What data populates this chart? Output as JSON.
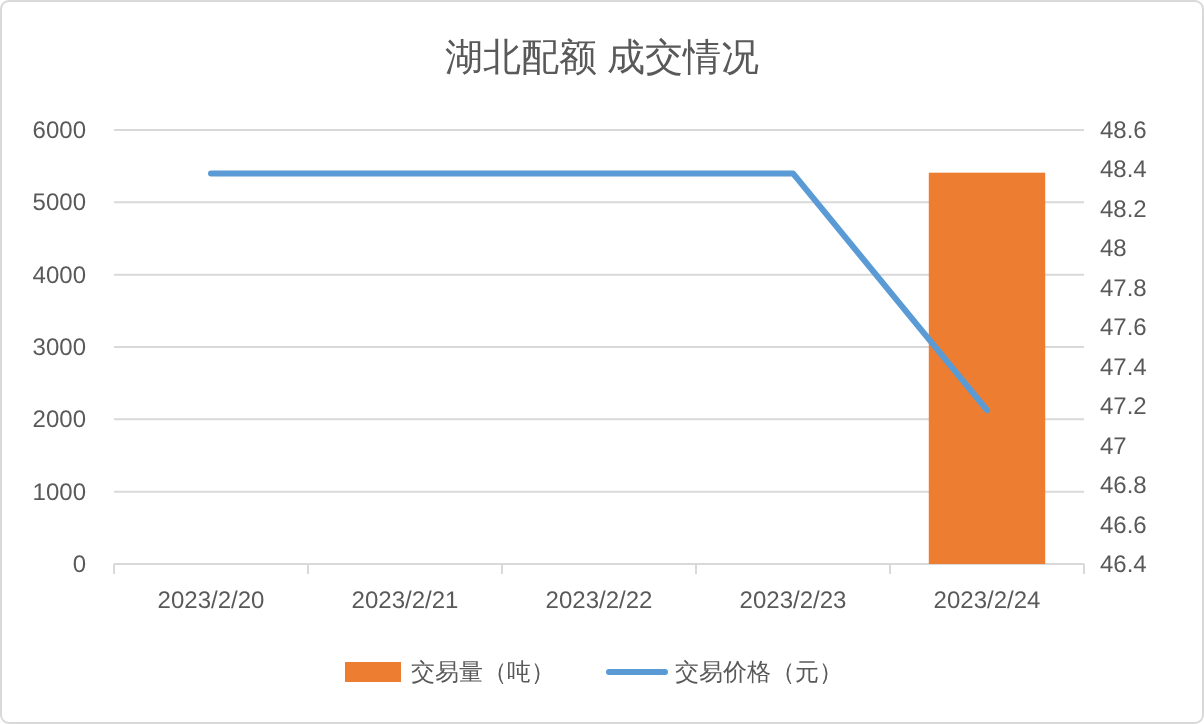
{
  "chart_data": {
    "type": "bar",
    "title": "湖北配额 成交情况",
    "categories": [
      "2023/2/20",
      "2023/2/21",
      "2023/2/22",
      "2023/2/23",
      "2023/2/24"
    ],
    "series": [
      {
        "name": "交易量（吨）",
        "color": "#ed7d31",
        "values": [
          null,
          null,
          null,
          null,
          5410
        ]
      },
      {
        "name": "交易价格（元）",
        "type": "line",
        "axis": "y2",
        "color": "#5b9bd5",
        "values": [
          48.38,
          48.38,
          48.38,
          48.38,
          47.18
        ]
      }
    ],
    "ylim": [
      0,
      6000
    ],
    "yticks": [
      0,
      1000,
      2000,
      3000,
      4000,
      5000,
      6000
    ],
    "y2lim": [
      46.4,
      48.6
    ],
    "y2ticks": [
      46.4,
      46.6,
      46.8,
      47,
      47.2,
      47.4,
      47.6,
      47.8,
      48,
      48.2,
      48.4,
      48.6
    ],
    "grid": "y",
    "legend": "bottom"
  }
}
